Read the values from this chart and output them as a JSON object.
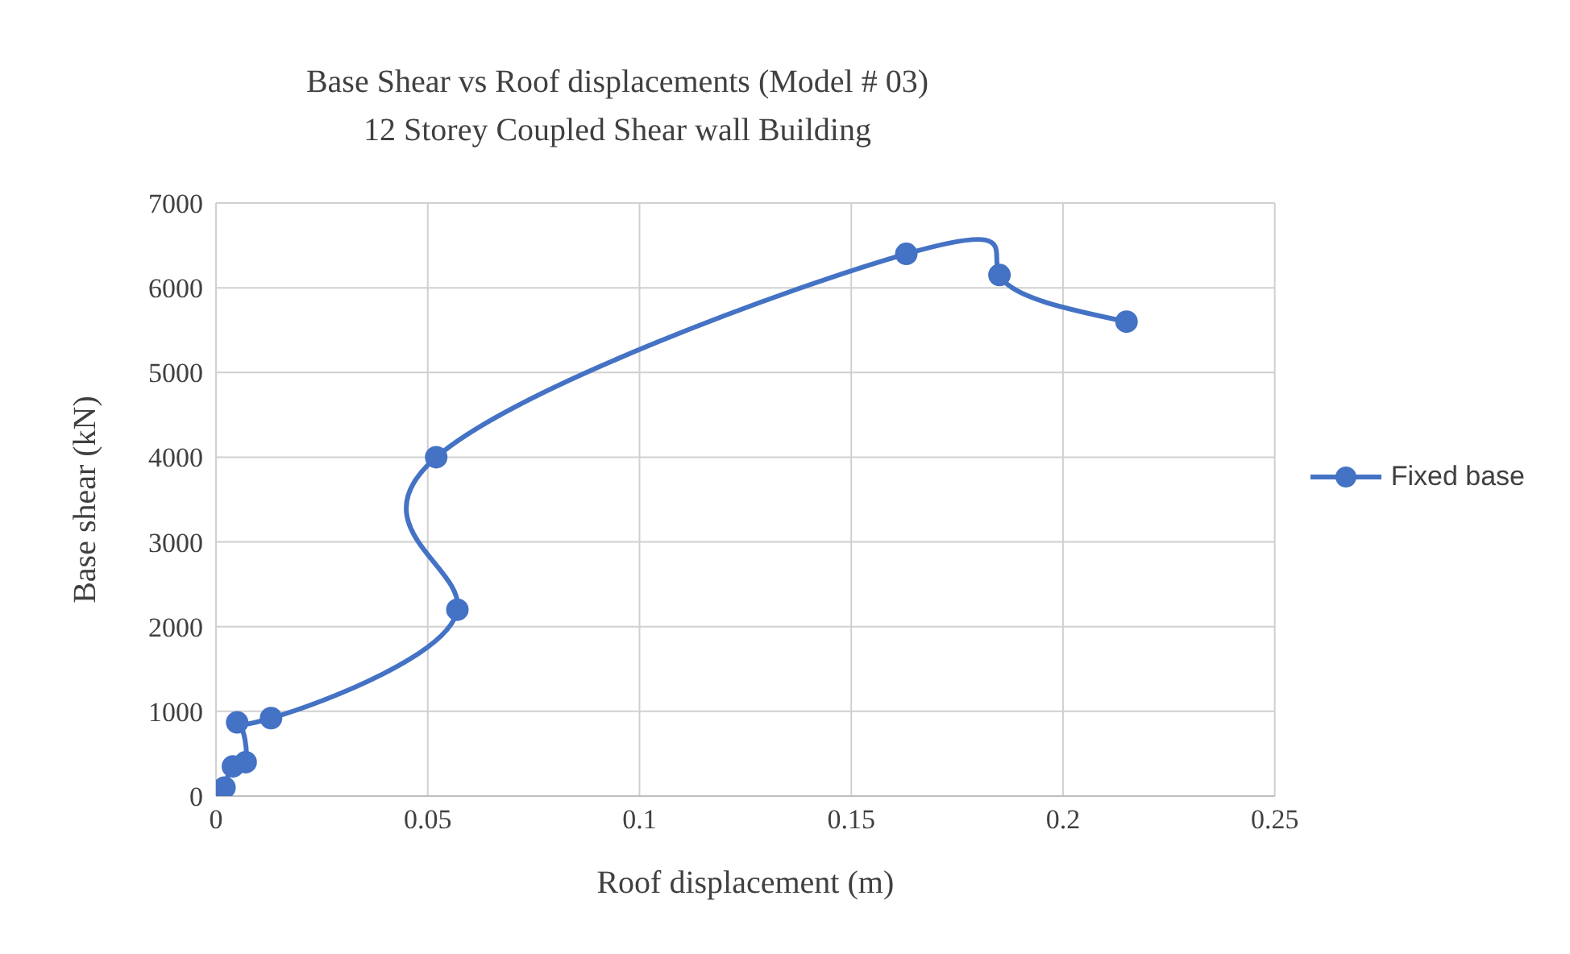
{
  "chart_data": {
    "type": "line",
    "title": "Base Shear vs Roof displacements (Model # 03)",
    "subtitle": "12 Storey Coupled Shear wall Building",
    "xlabel": "Roof displacement (m)",
    "ylabel": "Base shear (kN)",
    "x": [
      0,
      0.002,
      0.004,
      0.007,
      0.005,
      0.013,
      0.057,
      0.052,
      0.163,
      0.185,
      0.215
    ],
    "series": [
      {
        "name": "Fixed base",
        "color": "#4472c4",
        "values": [
          0,
          100,
          350,
          400,
          870,
          920,
          2200,
          4000,
          6400,
          6150,
          5600
        ]
      }
    ],
    "xlim": [
      0,
      0.25
    ],
    "xticks": [
      0,
      0.05,
      0.1,
      0.15,
      0.2,
      0.25
    ],
    "ylim": [
      0,
      7000
    ],
    "yticks": [
      0,
      1000,
      2000,
      3000,
      4000,
      5000,
      6000,
      7000
    ],
    "grid": true,
    "legend": "right",
    "marker": "circle",
    "line_style": "solid"
  }
}
